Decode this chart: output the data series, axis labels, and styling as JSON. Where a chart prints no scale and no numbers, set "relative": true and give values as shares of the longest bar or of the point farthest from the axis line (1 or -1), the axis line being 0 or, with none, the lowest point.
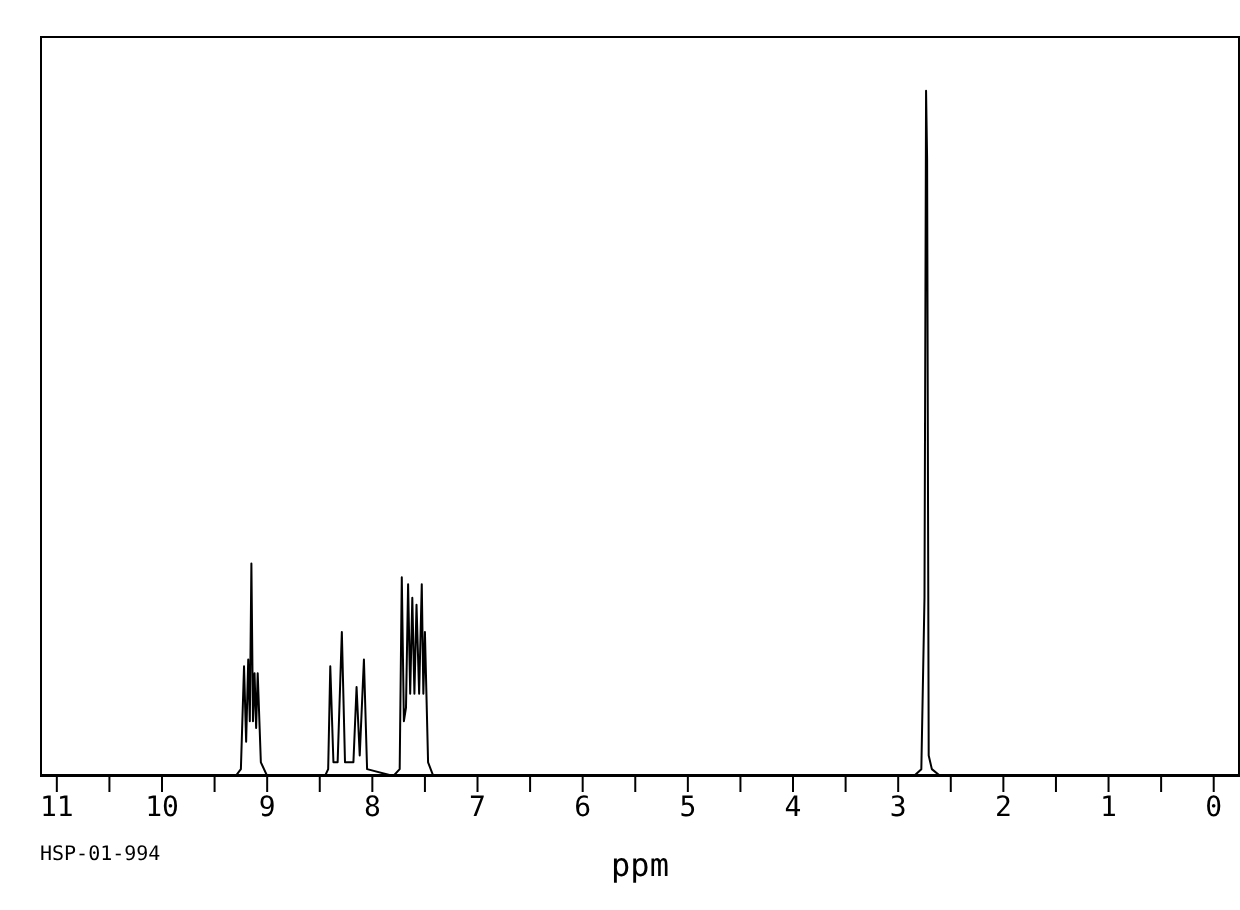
{
  "chart_data": {
    "type": "line",
    "xlabel": "ppm",
    "relative": true,
    "tick_labels": "x",
    "marker": "none",
    "line_style": "solid",
    "xlim": [
      11.16,
      -0.25
    ],
    "xticks": [
      11,
      {
        "value": 10.5,
        "label": null
      },
      10,
      {
        "value": 9.5,
        "label": null
      },
      9,
      {
        "value": 8.5,
        "label": null
      },
      8,
      {
        "value": 7.5,
        "label": null
      },
      7,
      {
        "value": 6.5,
        "label": null
      },
      6,
      {
        "value": 5.5,
        "label": null
      },
      5,
      {
        "value": 4.5,
        "label": null
      },
      4,
      {
        "value": 3.5,
        "label": null
      },
      3,
      {
        "value": 2.5,
        "label": null
      },
      2,
      {
        "value": 1.5,
        "label": null
      },
      1,
      {
        "value": 0.5,
        "label": null
      },
      0
    ],
    "x": [
      11.1,
      9.3,
      9.25,
      9.22,
      9.2,
      9.18,
      9.165,
      9.15,
      9.135,
      9.12,
      9.105,
      9.09,
      9.06,
      9.0,
      8.45,
      8.42,
      8.4,
      8.37,
      8.33,
      8.29,
      8.26,
      8.18,
      8.15,
      8.12,
      8.08,
      8.05,
      7.8,
      7.74,
      7.72,
      7.7,
      7.68,
      7.66,
      7.64,
      7.62,
      7.6,
      7.58,
      7.555,
      7.53,
      7.515,
      7.5,
      7.47,
      7.42,
      5.0,
      2.85,
      2.78,
      2.75,
      2.735,
      2.725,
      2.71,
      2.68,
      2.6,
      -0.2
    ],
    "series": [
      {
        "color": "#000000",
        "values": [
          0,
          0,
          0.01,
          0.16,
          0.05,
          0.17,
          0.08,
          0.31,
          0.08,
          0.15,
          0.07,
          0.15,
          0.02,
          0,
          0,
          0.01,
          0.16,
          0.02,
          0.02,
          0.21,
          0.02,
          0.02,
          0.13,
          0.03,
          0.17,
          0.01,
          0,
          0.01,
          0.29,
          0.08,
          0.1,
          0.28,
          0.12,
          0.26,
          0.12,
          0.25,
          0.12,
          0.28,
          0.12,
          0.21,
          0.02,
          0,
          0,
          0,
          0.01,
          0.26,
          1.0,
          0.9,
          0.03,
          0.01,
          0,
          0
        ]
      }
    ],
    "annotations": [
      "HSP-01-994"
    ]
  }
}
